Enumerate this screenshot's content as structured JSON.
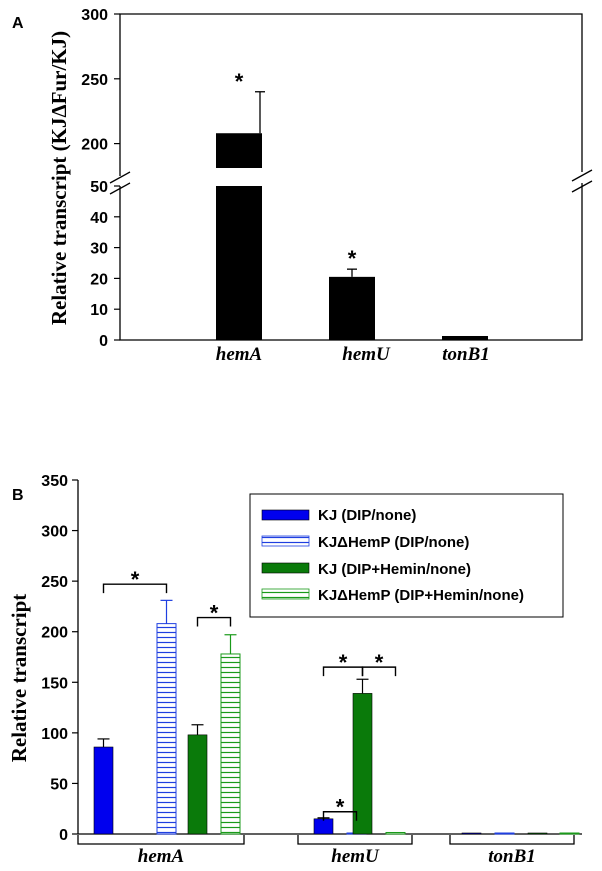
{
  "chart_data": [
    {
      "type": "bar",
      "panel_label": "A",
      "ylabel": "Relative transcript (KJΔFur/KJ)",
      "categories": [
        "hemA",
        "hemU",
        "tonB1"
      ],
      "values": [
        208,
        20.5,
        1.3
      ],
      "errors": [
        32,
        2.5,
        0
      ],
      "significance": [
        "*",
        "*",
        ""
      ],
      "axis_break": [
        50,
        175
      ],
      "ylim_lower": [
        0,
        50
      ],
      "ylim_upper": [
        175,
        300
      ],
      "yticks_lower": [
        "0",
        "10",
        "20",
        "30",
        "40",
        "50"
      ],
      "yticks_upper": [
        "200",
        "250",
        "300"
      ],
      "colors": {
        "bar": "#000000"
      }
    },
    {
      "type": "bar",
      "panel_label": "B",
      "ylabel": "Relative transcript",
      "categories": [
        "hemA",
        "hemU",
        "tonB1"
      ],
      "ylim": [
        0,
        350
      ],
      "yticks": [
        "0",
        "50",
        "100",
        "150",
        "200",
        "250",
        "300",
        "350"
      ],
      "series": [
        {
          "name": "KJ (DIP/none)",
          "values": [
            86,
            15,
            0.3
          ],
          "errors": [
            8,
            1,
            0
          ],
          "fill": "#0000ee",
          "hatched": false
        },
        {
          "name": "KJΔHemP (DIP/none)",
          "values": [
            208,
            0.3,
            0.3
          ],
          "errors": [
            23,
            0,
            0
          ],
          "fill": "#0000ee",
          "hatched": true
        },
        {
          "name": "KJ (DIP+Hemin/none)",
          "values": [
            98,
            139,
            0.3
          ],
          "errors": [
            10,
            14,
            0
          ],
          "fill": "#0a7a0a",
          "hatched": false
        },
        {
          "name": "KJΔHemP (DIP+Hemin/none)",
          "values": [
            178,
            1.5,
            0.3
          ],
          "errors": [
            19,
            0,
            0
          ],
          "fill": "#1a9a1a",
          "hatched": true
        }
      ],
      "significance_marker": "*",
      "legend_position": "top-right"
    }
  ]
}
